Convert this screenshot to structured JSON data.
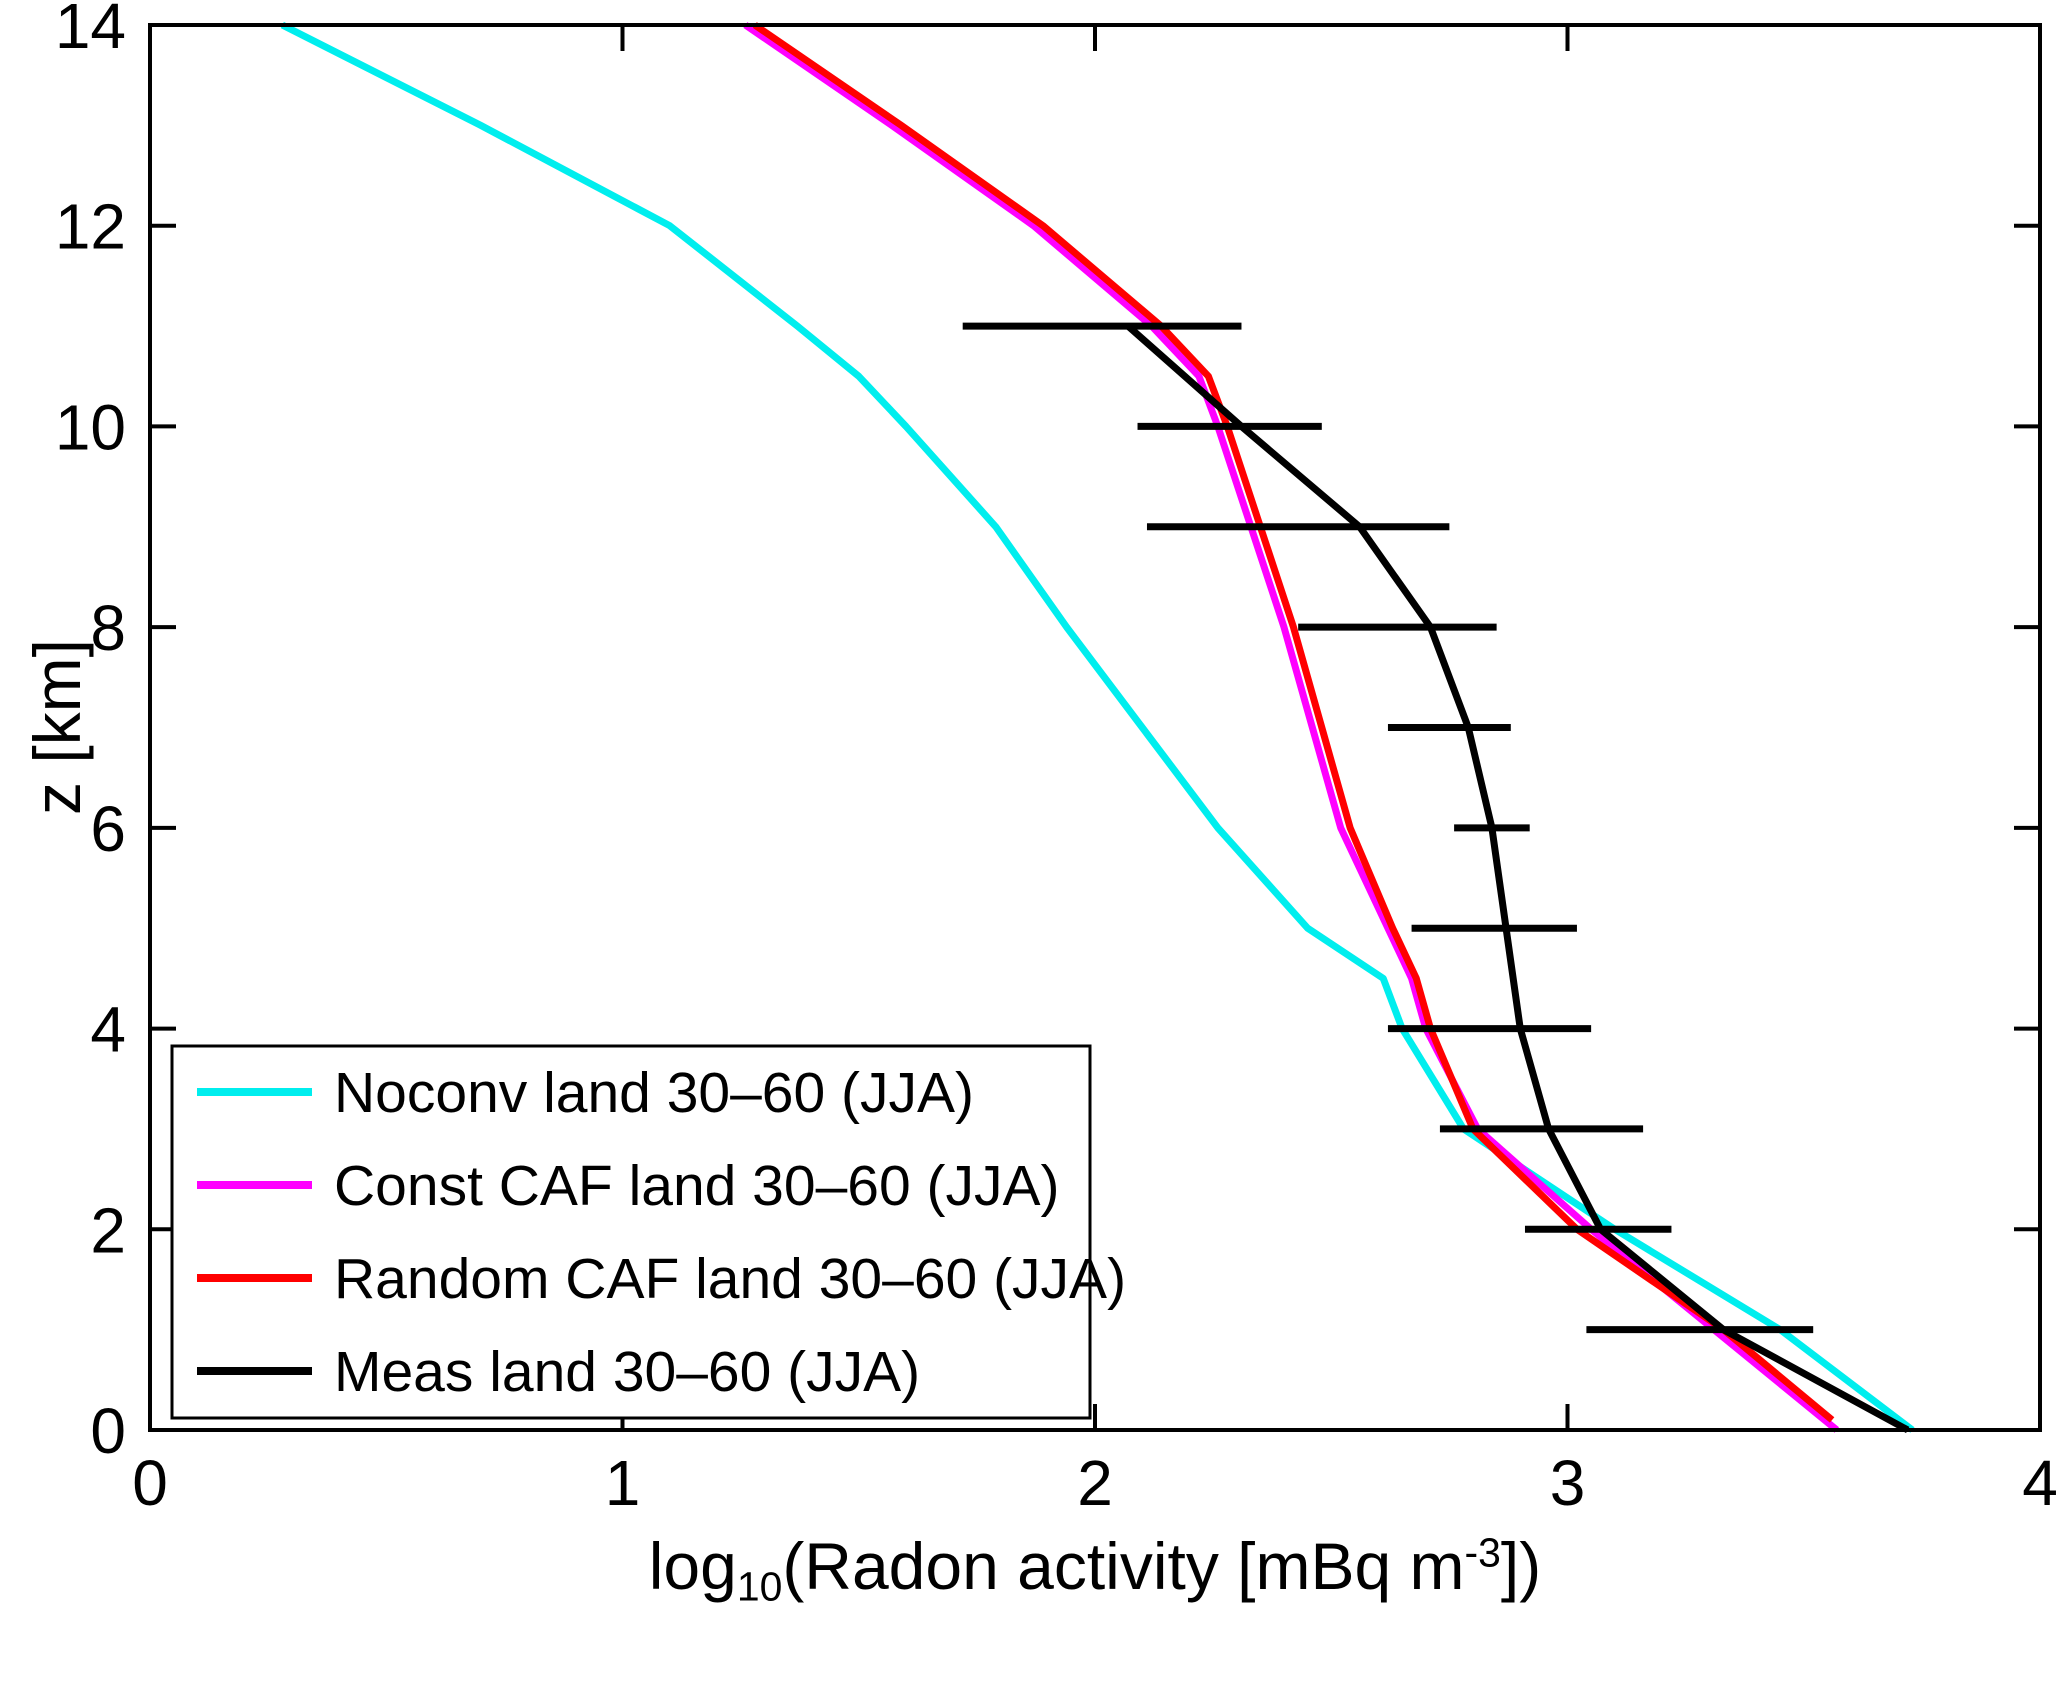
{
  "figure": {
    "background": "#FFFFFF",
    "ylabel": "z [km]",
    "xlabel": {
      "prefix": "log",
      "sub": "10",
      "mid": "(Radon activity [mBq m",
      "sup": "-3",
      "suffix": "])"
    }
  },
  "chart_data": {
    "type": "line",
    "title": "",
    "xlabel": "log10(Radon activity [mBq m^-3])",
    "ylabel": "z [km]",
    "xlim": [
      0,
      4
    ],
    "ylim": [
      0,
      14
    ],
    "x_ticks": [
      0,
      1,
      2,
      3,
      4
    ],
    "y_ticks": [
      0,
      2,
      4,
      6,
      8,
      10,
      12,
      14
    ],
    "grid": false,
    "legend_position": "lower-left",
    "series": [
      {
        "name": "Noconv land 30–60 (JJA)",
        "color": "#00EEEE",
        "z": [
          0,
          1,
          2,
          3,
          4,
          4.5,
          5,
          6,
          7,
          8,
          9,
          10,
          10.5,
          11,
          12,
          13,
          14
        ],
        "log10_activity": [
          3.73,
          3.45,
          3.1,
          2.78,
          2.65,
          2.61,
          2.45,
          2.26,
          2.1,
          1.94,
          1.79,
          1.6,
          1.5,
          1.37,
          1.1,
          0.7,
          0.28
        ]
      },
      {
        "name": "Const CAF land 30–60 (JJA)",
        "color": "#FF00FF",
        "z": [
          0,
          1,
          2,
          3,
          4,
          4.5,
          5,
          6,
          7,
          8,
          9,
          10,
          10.5,
          11,
          12,
          13,
          14
        ],
        "log10_activity": [
          3.57,
          3.31,
          3.05,
          2.81,
          2.7,
          2.67,
          2.62,
          2.52,
          2.46,
          2.4,
          2.33,
          2.26,
          2.22,
          2.12,
          1.87,
          1.57,
          1.26
        ]
      },
      {
        "name": "Random CAF land 30–60 (JJA)",
        "color": "#FF0000",
        "z": [
          0.1,
          1,
          2,
          3,
          4,
          4.5,
          5,
          6,
          7,
          8,
          9,
          10,
          10.5,
          11,
          12,
          13,
          14
        ],
        "log10_activity": [
          3.56,
          3.33,
          3.02,
          2.8,
          2.71,
          2.68,
          2.63,
          2.54,
          2.48,
          2.42,
          2.35,
          2.28,
          2.24,
          2.14,
          1.89,
          1.59,
          1.28
        ]
      },
      {
        "name": "Meas land 30–60 (JJA)",
        "color": "#000000",
        "z": [
          0,
          1,
          2,
          3,
          4,
          5,
          6,
          7,
          8,
          9,
          10,
          11
        ],
        "log10_activity": [
          3.72,
          3.33,
          3.07,
          2.96,
          2.9,
          2.87,
          2.84,
          2.79,
          2.71,
          2.56,
          2.31,
          2.07
        ],
        "xerr_lo": [
          null,
          3.04,
          2.91,
          2.73,
          2.62,
          2.67,
          2.76,
          2.62,
          2.43,
          2.11,
          2.09,
          1.72
        ],
        "xerr_hi": [
          null,
          3.52,
          3.22,
          3.16,
          3.05,
          3.02,
          2.92,
          2.88,
          2.85,
          2.75,
          2.48,
          2.31
        ]
      }
    ]
  }
}
